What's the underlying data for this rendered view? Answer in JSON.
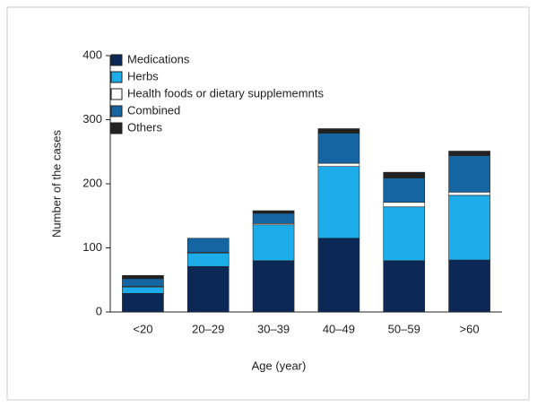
{
  "chart_data": {
    "type": "stacked_bar",
    "x_label": "Age (year)",
    "y_label": "Number of the cases",
    "categories": [
      "<20",
      "20–29",
      "30–39",
      "40–49",
      "50–59",
      ">60"
    ],
    "series": [
      {
        "name": "Medications",
        "color": "#0c2857",
        "values": [
          29,
          71,
          80,
          115,
          80,
          81
        ]
      },
      {
        "name": "Herbs",
        "color": "#1cadea",
        "values": [
          10,
          21,
          56,
          112,
          84,
          101
        ]
      },
      {
        "name": "Health foods or dietary supplememnts",
        "color": "#ffffff",
        "values": [
          1,
          1,
          2,
          5,
          7,
          5
        ]
      },
      {
        "name": "Combined",
        "color": "#1565a3",
        "values": [
          12,
          22,
          16,
          47,
          38,
          57
        ]
      },
      {
        "name": "Others",
        "color": "#222222",
        "values": [
          5,
          0,
          4,
          7,
          9,
          7
        ]
      }
    ],
    "ylim": [
      0,
      400
    ],
    "yticks": [
      0,
      100,
      200,
      300,
      400
    ],
    "legend": "upper left"
  }
}
